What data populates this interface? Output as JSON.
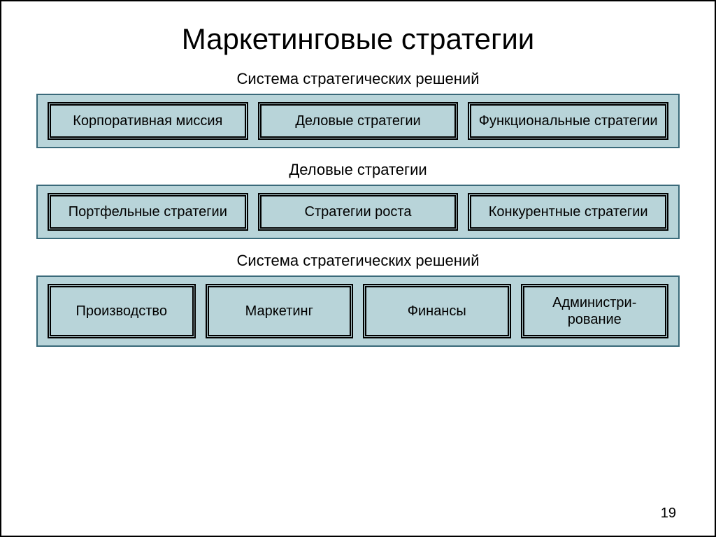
{
  "title": "Маркетинговые стратегии",
  "sections": [
    {
      "label": "Система стратегических решений",
      "boxes": [
        "Корпоративная миссия",
        "Деловые стратегии",
        "Функциональные стратегии"
      ]
    },
    {
      "label": "Деловые стратегии",
      "boxes": [
        "Портфельные стратегии",
        "Стратегии роста",
        "Конкурентные стратегии"
      ]
    },
    {
      "label": "Система стратегических решений",
      "boxes": [
        "Производство",
        "Маркетинг",
        "Финансы",
        "Администри-рование"
      ]
    }
  ],
  "pageNumber": "19",
  "colors": {
    "boxFill": "#b8d4d9",
    "boxBorder": "#3a6a7a",
    "innerBorder": "#000000",
    "background": "#ffffff",
    "text": "#000000"
  },
  "typography": {
    "titleSize": 42,
    "labelSize": 22,
    "boxTextSize": 20,
    "fontFamily": "Arial"
  }
}
